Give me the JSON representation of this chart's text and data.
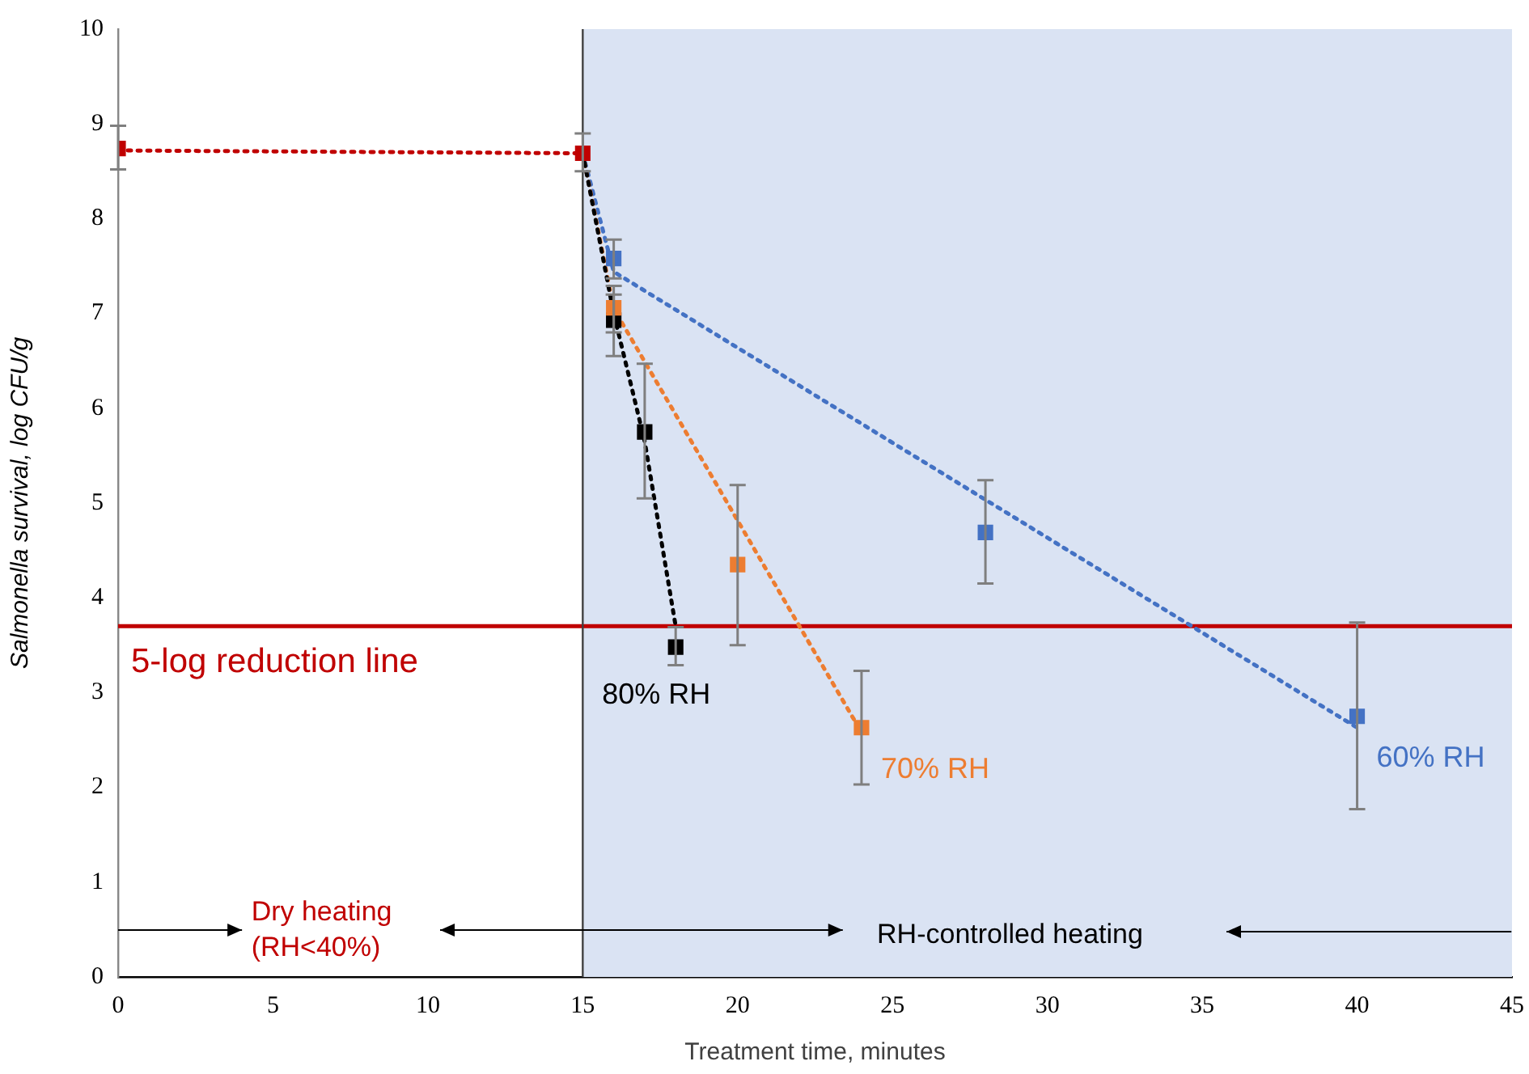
{
  "chart_data": {
    "type": "scatter",
    "xlabel": "Treatment time, minutes",
    "ylabel": "Salmonella survival, log CFU/g",
    "xlim": [
      0,
      45
    ],
    "xticks": [
      0,
      5,
      10,
      15,
      20,
      25,
      30,
      35,
      40,
      45
    ],
    "ylim": [
      0,
      10
    ],
    "yticks": [
      0,
      1,
      2,
      3,
      4,
      5,
      6,
      7,
      8,
      9,
      10
    ],
    "grid": false,
    "legend": false,
    "marker": "square",
    "series": [
      {
        "type": "line",
        "color": "#c00000",
        "x": [
          0,
          15
        ],
        "values": [
          8.72,
          8.69
        ],
        "marker": "none",
        "line_style": "dotted"
      },
      {
        "type": "line",
        "color": "#000000",
        "x": [
          15,
          16,
          17,
          18
        ],
        "values": [
          8.69,
          7.0,
          5.65,
          3.7
        ],
        "marker": "none",
        "line_style": "dotted"
      },
      {
        "type": "line",
        "color": "#ed7d31",
        "x": [
          15,
          16,
          24
        ],
        "values": [
          8.69,
          7.05,
          2.58
        ],
        "marker": "none",
        "line_style": "dotted"
      },
      {
        "type": "line",
        "color": "#4472c4",
        "x": [
          15,
          16,
          40
        ],
        "values": [
          8.69,
          7.44,
          2.63
        ],
        "marker": "none",
        "line_style": "dotted"
      },
      {
        "color": "#c00000",
        "x": [
          0,
          15
        ],
        "values": [
          8.74,
          8.69
        ],
        "errors": [
          [
            8.52,
            8.98
          ],
          [
            8.5,
            8.9
          ]
        ]
      },
      {
        "name": "60% RH",
        "color": "#4472c4",
        "x": [
          16,
          28,
          40
        ],
        "values": [
          7.58,
          4.69,
          2.75
        ],
        "errors": [
          [
            7.37,
            7.78
          ],
          [
            4.15,
            5.24
          ],
          [
            1.77,
            3.74
          ]
        ]
      },
      {
        "name": "70% RH",
        "color": "#ed7d31",
        "x": [
          16,
          20,
          24
        ],
        "values": [
          7.06,
          4.35,
          2.63
        ],
        "errors": [
          [
            6.8,
            7.29
          ],
          [
            3.5,
            5.19
          ],
          [
            2.03,
            3.23
          ]
        ]
      },
      {
        "name": "80% RH",
        "color": "#000000",
        "x": [
          16,
          17,
          18
        ],
        "values": [
          6.93,
          5.75,
          3.48
        ],
        "errors": [
          [
            6.55,
            7.2
          ],
          [
            5.05,
            6.47
          ],
          [
            3.29,
            3.69
          ]
        ]
      }
    ],
    "ref_lines": [
      {
        "axis": "y",
        "value": 3.7,
        "label": "5-log reduction line",
        "color": "#c00000"
      },
      {
        "axis": "x",
        "value": 15,
        "color": "#404040"
      }
    ],
    "bands": [
      {
        "axis": "x",
        "from": 15,
        "to": 45,
        "color": "#dae3f3"
      }
    ],
    "annotations": [
      "Dry heating\n(RH<40%)",
      "RH-controlled heating"
    ]
  }
}
